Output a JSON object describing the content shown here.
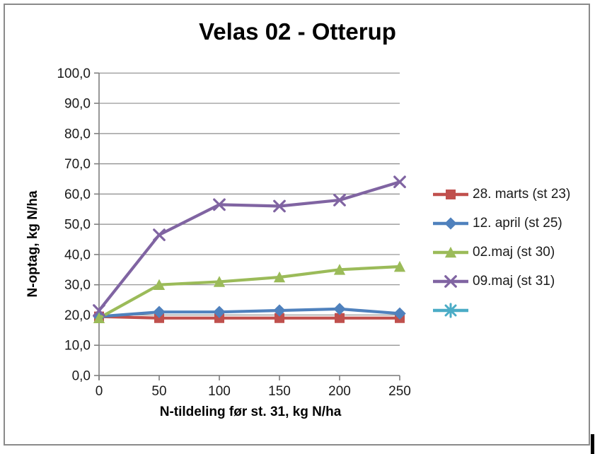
{
  "chart_data": {
    "type": "line",
    "title": "Velas 02 - Otterup",
    "xlabel": "N-tildeling før st. 31, kg N/ha",
    "ylabel": "N-optag, kg N/ha",
    "x": [
      0,
      50,
      100,
      150,
      200,
      250
    ],
    "xlim": [
      0,
      250
    ],
    "ylim": [
      0,
      100
    ],
    "y_step": 10,
    "grid": true,
    "legend_position": "right",
    "x_tick_labels": [
      "0",
      "50",
      "100",
      "150",
      "200",
      "250"
    ],
    "y_tick_labels": [
      "0,0",
      "10,0",
      "20,0",
      "30,0",
      "40,0",
      "50,0",
      "60,0",
      "70,0",
      "80,0",
      "90,0",
      "100,0"
    ],
    "series": [
      {
        "name": "28. marts (st 23)",
        "marker": "square",
        "color": "#C0504D",
        "values": [
          19.5,
          19.0,
          19.0,
          19.0,
          19.0,
          19.0
        ]
      },
      {
        "name": "12. april (st 25)",
        "marker": "diamond",
        "color": "#4F81BD",
        "values": [
          19.5,
          21.0,
          21.0,
          21.5,
          22.0,
          20.5
        ]
      },
      {
        "name": "02.maj (st 30)",
        "marker": "triangle",
        "color": "#9BBB59",
        "values": [
          19.0,
          30.0,
          31.0,
          32.5,
          35.0,
          36.0
        ]
      },
      {
        "name": "09.maj (st 31)",
        "marker": "x",
        "color": "#8064A2",
        "values": [
          21.5,
          46.5,
          56.5,
          56.0,
          58.0,
          64.0
        ]
      },
      {
        "name": "",
        "marker": "asterisk",
        "color": "#4BACC6",
        "values": []
      }
    ],
    "colors": {
      "grid": "#8c8c8c",
      "axis": "#7f7f7f",
      "text": "#1a1a1a",
      "frame_border": "#8a8a8a"
    }
  }
}
